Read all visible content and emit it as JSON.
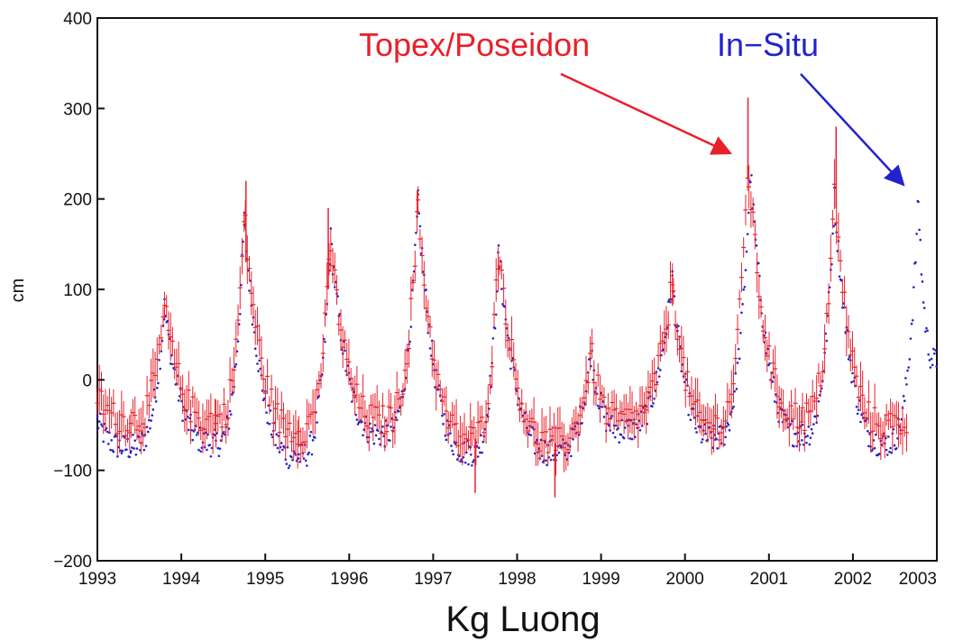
{
  "chart_data": {
    "type": "scatter",
    "title": "Kg Luong",
    "xlabel": "",
    "ylabel": "cm",
    "xlim": [
      1993,
      2003
    ],
    "ylim": [
      -200,
      400
    ],
    "xticks": [
      1993,
      1994,
      1995,
      1996,
      1997,
      1998,
      1999,
      2000,
      2001,
      2002,
      2003
    ],
    "yticks": [
      -200,
      -100,
      0,
      100,
      200,
      300,
      400
    ],
    "grid": false,
    "colors": {
      "topex": "#e8202a",
      "insitu": "#2222cc"
    },
    "series": [
      {
        "name": "In-Situ",
        "color": "#2222cc",
        "peaks": [
          {
            "x": 1993.8,
            "y": 80
          },
          {
            "x": 1994.75,
            "y": 175
          },
          {
            "x": 1995.78,
            "y": 155
          },
          {
            "x": 1996.82,
            "y": 195
          },
          {
            "x": 1997.78,
            "y": 140
          },
          {
            "x": 1998.88,
            "y": 30
          },
          {
            "x": 1999.85,
            "y": 110
          },
          {
            "x": 2000.78,
            "y": 230
          },
          {
            "x": 2001.78,
            "y": 200
          },
          {
            "x": 2002.78,
            "y": 200
          }
        ],
        "troughs": [
          {
            "x": 1993.4,
            "y": -75
          },
          {
            "x": 1994.4,
            "y": -70
          },
          {
            "x": 1995.4,
            "y": -85
          },
          {
            "x": 1996.4,
            "y": -60
          },
          {
            "x": 1997.45,
            "y": -80
          },
          {
            "x": 1998.45,
            "y": -80
          },
          {
            "x": 1999.25,
            "y": -55
          },
          {
            "x": 2000.35,
            "y": -65
          },
          {
            "x": 2001.4,
            "y": -60
          },
          {
            "x": 2002.4,
            "y": -70
          }
        ],
        "end": {
          "x": 2003.0,
          "y": 20
        }
      },
      {
        "name": "Topex/Poseidon",
        "color": "#e8202a",
        "peaks": [
          {
            "x": 1993.8,
            "y": 80
          },
          {
            "x": 1994.75,
            "y": 180
          },
          {
            "x": 1995.78,
            "y": 150
          },
          {
            "x": 1996.82,
            "y": 190
          },
          {
            "x": 1997.78,
            "y": 150
          },
          {
            "x": 1998.88,
            "y": 30
          },
          {
            "x": 1999.85,
            "y": 110
          },
          {
            "x": 2000.75,
            "y": 240
          },
          {
            "x": 2001.78,
            "y": 205
          }
        ],
        "troughs": [
          {
            "x": 1993.4,
            "y": -45
          },
          {
            "x": 1994.4,
            "y": -45
          },
          {
            "x": 1995.4,
            "y": -55
          },
          {
            "x": 1996.4,
            "y": -45
          },
          {
            "x": 1997.45,
            "y": -65
          },
          {
            "x": 1998.45,
            "y": -70
          },
          {
            "x": 1999.25,
            "y": -45
          },
          {
            "x": 2000.35,
            "y": -50
          },
          {
            "x": 2001.4,
            "y": -40
          },
          {
            "x": 2002.4,
            "y": -50
          }
        ],
        "spikes": [
          {
            "x": 1994.77,
            "y": 220
          },
          {
            "x": 1995.75,
            "y": 190
          },
          {
            "x": 1997.5,
            "y": -125
          },
          {
            "x": 1998.45,
            "y": -130
          },
          {
            "x": 2000.75,
            "y": 312
          },
          {
            "x": 2001.8,
            "y": 280
          }
        ],
        "end": {
          "x": 2002.65,
          "y": -45
        }
      }
    ],
    "annotations": [
      {
        "text": "Topex/Poseidon",
        "color": "#e8202a",
        "target": {
          "x": 2000.72,
          "y": 250
        }
      },
      {
        "text": "In−Situ",
        "color": "#2222cc",
        "target": {
          "x": 2002.72,
          "y": 210
        }
      }
    ]
  }
}
